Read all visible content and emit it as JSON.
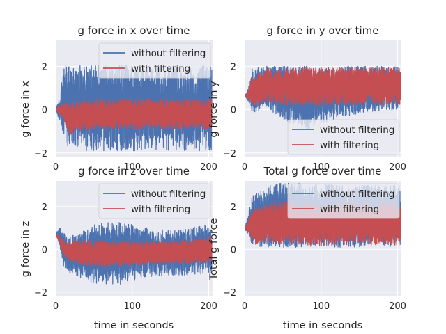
{
  "colors": {
    "background": "#eaeaf2",
    "grid": "#ffffff",
    "unfiltered": "#4c72b0",
    "filtered": "#c44e52"
  },
  "chart_data": [
    {
      "type": "line",
      "title": "g force in x over time",
      "xlabel": "",
      "ylabel": "g force in x",
      "xlim": [
        0,
        205
      ],
      "ylim": [
        -2.2,
        3.2
      ],
      "xticks": [
        0,
        100,
        200
      ],
      "yticks": [
        -2,
        0,
        2
      ],
      "legend": "top-right",
      "series": [
        {
          "name": "without filtering",
          "color": "#4c72b0",
          "x": [
            0,
            5,
            10,
            15,
            20,
            30,
            50,
            80,
            120,
            160,
            204
          ],
          "min": [
            -0.1,
            -0.5,
            -1.2,
            -1.8,
            -1.9,
            -1.9,
            -1.9,
            -1.9,
            -1.9,
            -1.9,
            -1.9
          ],
          "max": [
            0.1,
            0.5,
            2.0,
            2.05,
            2.05,
            2.05,
            2.05,
            2.05,
            2.05,
            2.05,
            2.05
          ]
        },
        {
          "name": "with filtering",
          "color": "#c44e52",
          "x": [
            0,
            5,
            10,
            15,
            20,
            30,
            50,
            80,
            120,
            160,
            204
          ],
          "min": [
            -0.05,
            -0.2,
            -0.4,
            -0.9,
            -1.2,
            -1.0,
            -0.9,
            -0.9,
            -0.9,
            -0.9,
            -0.9
          ],
          "max": [
            0.05,
            0.2,
            0.3,
            0.3,
            0.35,
            0.4,
            0.5,
            0.5,
            0.5,
            0.5,
            0.5
          ]
        }
      ]
    },
    {
      "type": "line",
      "title": "g force in y over time",
      "xlabel": "",
      "ylabel": "g force in y",
      "xlim": [
        0,
        205
      ],
      "ylim": [
        -2.2,
        3.2
      ],
      "xticks": [
        0,
        100,
        200
      ],
      "yticks": [
        -2,
        0,
        2
      ],
      "legend": "bottom-right",
      "series": [
        {
          "name": "without filtering",
          "color": "#4c72b0",
          "x": [
            0,
            5,
            10,
            15,
            20,
            30,
            50,
            80,
            120,
            160,
            204
          ],
          "min": [
            0.6,
            0.4,
            -0.2,
            -0.1,
            0.0,
            0.1,
            -0.5,
            -1.0,
            -0.4,
            -0.1,
            0.0
          ],
          "max": [
            0.6,
            1.0,
            2.0,
            2.0,
            2.0,
            2.0,
            2.0,
            2.0,
            2.0,
            2.0,
            2.0
          ]
        },
        {
          "name": "with filtering",
          "color": "#c44e52",
          "x": [
            0,
            5,
            10,
            15,
            20,
            30,
            50,
            80,
            120,
            160,
            204
          ],
          "min": [
            0.6,
            0.5,
            0.2,
            0.1,
            0.2,
            0.3,
            0.2,
            0.2,
            0.2,
            0.2,
            0.2
          ],
          "max": [
            0.6,
            0.9,
            1.6,
            1.4,
            1.8,
            1.9,
            1.95,
            1.95,
            1.95,
            1.95,
            1.95
          ]
        }
      ]
    },
    {
      "type": "line",
      "title": "g force in z over time",
      "xlabel": "time in seconds",
      "ylabel": "g force in z",
      "xlim": [
        0,
        205
      ],
      "ylim": [
        -2.2,
        3.2
      ],
      "xticks": [
        0,
        100,
        200
      ],
      "yticks": [
        -2,
        0,
        2
      ],
      "legend": "top-right",
      "series": [
        {
          "name": "without filtering",
          "color": "#4c72b0",
          "x": [
            0,
            5,
            10,
            15,
            20,
            30,
            50,
            80,
            120,
            160,
            204
          ],
          "min": [
            0.7,
            0.2,
            -0.8,
            -1.0,
            -1.2,
            -1.3,
            -1.6,
            -1.7,
            -1.3,
            -1.2,
            -1.2
          ],
          "max": [
            0.8,
            1.0,
            0.9,
            0.6,
            0.6,
            0.8,
            1.2,
            1.3,
            1.0,
            0.9,
            1.2
          ]
        },
        {
          "name": "with filtering",
          "color": "#c44e52",
          "x": [
            0,
            5,
            10,
            15,
            20,
            30,
            50,
            80,
            120,
            160,
            204
          ],
          "min": [
            0.7,
            0.3,
            -0.3,
            -0.5,
            -0.6,
            -0.7,
            -0.8,
            -0.8,
            -0.7,
            -0.7,
            -0.6
          ],
          "max": [
            0.75,
            0.6,
            0.5,
            0.3,
            0.4,
            0.5,
            0.4,
            0.4,
            0.4,
            0.4,
            0.6
          ]
        }
      ]
    },
    {
      "type": "line",
      "title": "Total g force over time",
      "xlabel": "time in seconds",
      "ylabel": "Total g force",
      "xlim": [
        0,
        205
      ],
      "ylim": [
        -2.2,
        3.2
      ],
      "xticks": [
        0,
        100,
        200
      ],
      "yticks": [
        -2,
        0,
        2
      ],
      "legend": "top-right",
      "series": [
        {
          "name": "without filtering",
          "color": "#4c72b0",
          "x": [
            0,
            5,
            10,
            15,
            20,
            30,
            50,
            80,
            120,
            160,
            204
          ],
          "min": [
            0.9,
            0.7,
            0.2,
            0.1,
            0.1,
            0.1,
            0.1,
            0.1,
            0.1,
            0.1,
            0.1
          ],
          "max": [
            1.0,
            1.7,
            2.5,
            2.6,
            2.7,
            3.0,
            3.1,
            3.1,
            3.0,
            3.0,
            3.0
          ]
        },
        {
          "name": "with filtering",
          "color": "#c44e52",
          "x": [
            0,
            5,
            10,
            15,
            20,
            30,
            50,
            80,
            120,
            160,
            204
          ],
          "min": [
            0.9,
            0.8,
            0.4,
            0.2,
            0.3,
            0.3,
            0.2,
            0.2,
            0.2,
            0.2,
            0.2
          ],
          "max": [
            0.95,
            1.4,
            2.0,
            1.9,
            2.1,
            2.2,
            2.2,
            2.2,
            2.2,
            2.2,
            2.2
          ]
        }
      ]
    }
  ]
}
